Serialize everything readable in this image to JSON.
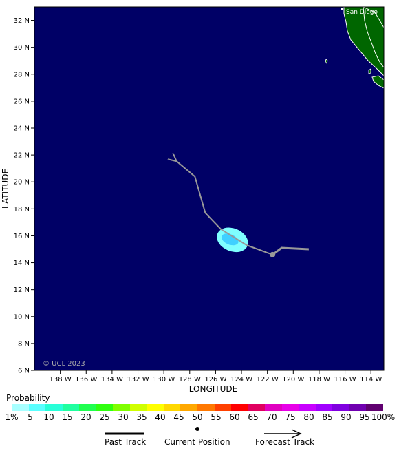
{
  "map": {
    "lon_min": -140,
    "lon_max": -113,
    "lat_min": 6,
    "lat_max": 33,
    "ocean_color": "#000066",
    "land_color": "#006600",
    "city_label": "San Diego",
    "watermark": "© UCL 2023",
    "x_axis_title": "LONGITUDE",
    "y_axis_title": "LATITUDE",
    "lon_ticks": [
      {
        "value": -138,
        "label": "138 W"
      },
      {
        "value": -136,
        "label": "136 W"
      },
      {
        "value": -134,
        "label": "134 W"
      },
      {
        "value": -132,
        "label": "132 W"
      },
      {
        "value": -130,
        "label": "130 W"
      },
      {
        "value": -128,
        "label": "128 W"
      },
      {
        "value": -126,
        "label": "126 W"
      },
      {
        "value": -124,
        "label": "124 W"
      },
      {
        "value": -122,
        "label": "122 W"
      },
      {
        "value": -120,
        "label": "120 W"
      },
      {
        "value": -118,
        "label": "118 W"
      },
      {
        "value": -116,
        "label": "116 W"
      },
      {
        "value": -114,
        "label": "114 W"
      }
    ],
    "lat_ticks": [
      {
        "value": 6,
        "label": "6 N"
      },
      {
        "value": 8,
        "label": "8 N"
      },
      {
        "value": 10,
        "label": "10 N"
      },
      {
        "value": 12,
        "label": "12 N"
      },
      {
        "value": 14,
        "label": "14 N"
      },
      {
        "value": 16,
        "label": "16 N"
      },
      {
        "value": 18,
        "label": "18 N"
      },
      {
        "value": 20,
        "label": "20 N"
      },
      {
        "value": 22,
        "label": "22 N"
      },
      {
        "value": 24,
        "label": "24 N"
      },
      {
        "value": 26,
        "label": "26 N"
      },
      {
        "value": 28,
        "label": "28 N"
      },
      {
        "value": 30,
        "label": "30 N"
      },
      {
        "value": 32,
        "label": "32 N"
      }
    ],
    "past_track": [
      [
        -118.8,
        15.0
      ],
      [
        -120.9,
        15.1
      ],
      [
        -121.6,
        14.6
      ]
    ],
    "current_position": [
      -121.6,
      14.6
    ],
    "forecast_track": [
      [
        -121.6,
        14.6
      ],
      [
        -123.6,
        15.3
      ],
      [
        -125.6,
        16.5
      ],
      [
        -126.8,
        17.7
      ],
      [
        -127.6,
        20.4
      ],
      [
        -129.1,
        21.6
      ]
    ],
    "track_color": "#999999",
    "probability_area": {
      "color_outer": "#7fffff",
      "color_inner": "#40d0ff",
      "center": [
        -124.7,
        15.7
      ],
      "radius_lon": 1.25,
      "radius_lat": 0.85
    }
  },
  "legend": {
    "title": "Probability",
    "colors": [
      "#a8ffff",
      "#5affff",
      "#28ffd8",
      "#20ffa0",
      "#20ff50",
      "#30ff10",
      "#80ff00",
      "#d0ff00",
      "#ffff00",
      "#ffd800",
      "#ffa800",
      "#ff7800",
      "#ff4000",
      "#ff0000",
      "#e00060",
      "#e000c0",
      "#e800e8",
      "#c800ff",
      "#a000ff",
      "#8000e0",
      "#7000b0",
      "#600070"
    ],
    "labels": [
      "1%",
      "5",
      "10",
      "15",
      "20",
      "25",
      "30",
      "35",
      "40",
      "45",
      "50",
      "55",
      "60",
      "65",
      "70",
      "75",
      "80",
      "85",
      "90",
      "95",
      "100%"
    ]
  },
  "key": {
    "past_track": "Past Track",
    "current_position": "Current Position",
    "forecast_track": "Forecast Track"
  }
}
